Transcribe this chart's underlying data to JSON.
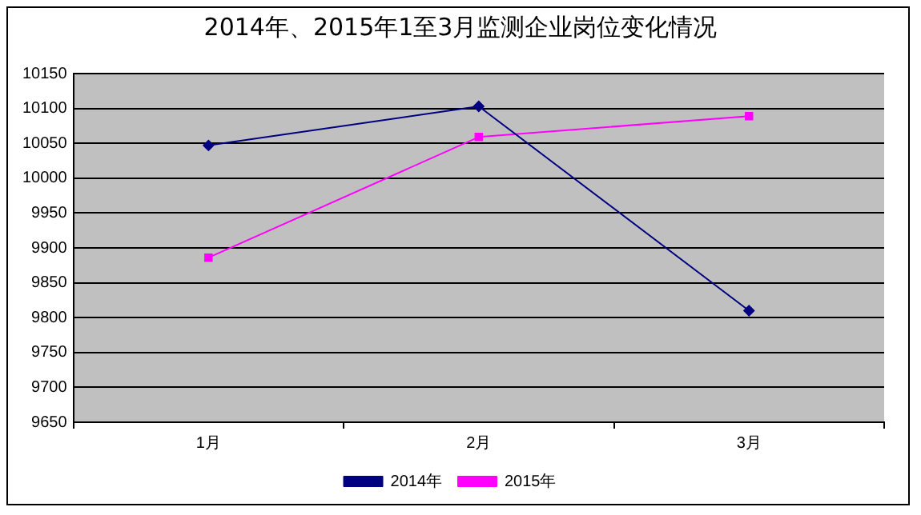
{
  "chart_data": {
    "type": "line",
    "title": "2014年、2015年1至3月监测企业岗位变化情况",
    "categories": [
      "1月",
      "2月",
      "3月"
    ],
    "series": [
      {
        "name": "2014年",
        "color": "#000080",
        "marker": "diamond",
        "values": [
          10047,
          10103,
          9810
        ]
      },
      {
        "name": "2015年",
        "color": "#ff00ff",
        "marker": "square",
        "values": [
          9886,
          10059,
          10089
        ]
      }
    ],
    "ylim": [
      9650,
      10150
    ],
    "yticks": [
      9650,
      9700,
      9750,
      9800,
      9850,
      9900,
      9950,
      10000,
      10050,
      10100,
      10150
    ],
    "grid": "y",
    "legend": "bottom",
    "line_style": "solid"
  }
}
